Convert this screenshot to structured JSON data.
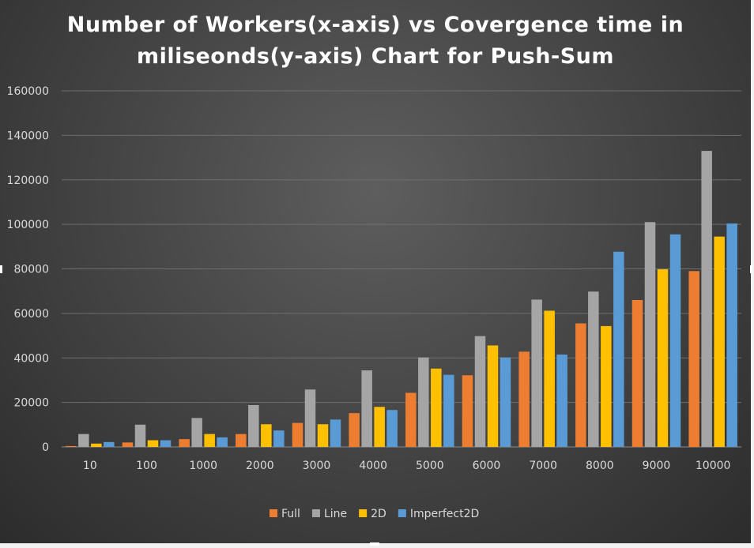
{
  "chart_data": {
    "type": "bar",
    "title": "Number of Workers(x-axis) vs Covergence time in miliseonds(y-axis) Chart for Push-Sum",
    "categories": [
      "10",
      "100",
      "1000",
      "2000",
      "3000",
      "4000",
      "5000",
      "6000",
      "7000",
      "8000",
      "9000",
      "10000"
    ],
    "series": [
      {
        "name": "Full",
        "color": "#ed7d31",
        "values": [
          400,
          2000,
          3500,
          5800,
          10800,
          15200,
          24300,
          32200,
          42800,
          55500,
          66000,
          79000
        ]
      },
      {
        "name": "Line",
        "color": "#a5a5a5",
        "values": [
          5800,
          10000,
          13000,
          18800,
          25800,
          34400,
          40200,
          49800,
          66200,
          69800,
          101000,
          133000
        ]
      },
      {
        "name": "2D",
        "color": "#ffc000",
        "values": [
          1500,
          3000,
          5800,
          10200,
          10200,
          18000,
          35200,
          45600,
          61200,
          54300,
          79800,
          94500
        ]
      },
      {
        "name": "Imperfect2D",
        "color": "#5b9bd5",
        "values": [
          2200,
          3000,
          4300,
          7400,
          12300,
          16600,
          32400,
          40200,
          41500,
          87700,
          95500,
          100400
        ]
      }
    ],
    "yticks": [
      "0",
      "20000",
      "40000",
      "60000",
      "80000",
      "100000",
      "120000",
      "140000",
      "160000"
    ],
    "ylim": [
      0,
      160000
    ],
    "xlabel": "",
    "ylabel": "",
    "grid": true,
    "legend": "bottom"
  }
}
